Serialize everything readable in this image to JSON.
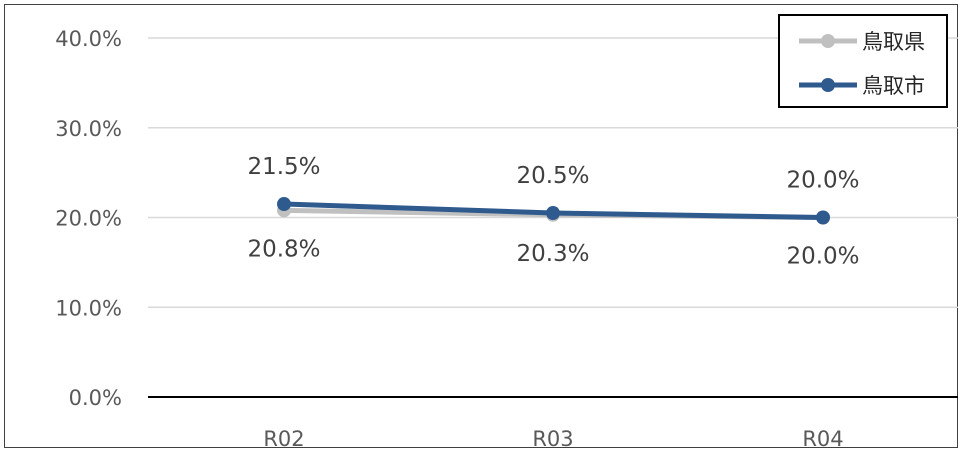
{
  "chart_data": {
    "type": "line",
    "categories": [
      "R02",
      "R03",
      "R04"
    ],
    "ylim": [
      0,
      0.4
    ],
    "yticks": [
      "0.0%",
      "10.0%",
      "20.0%",
      "30.0%",
      "40.0%"
    ],
    "grid": true,
    "legend_position": "top-right",
    "series": [
      {
        "name": "鳥取県",
        "values": [
          0.208,
          0.203,
          0.2
        ],
        "labels": [
          "20.8%",
          "20.3%",
          "20.0%"
        ],
        "color": "#c0c0c0",
        "label_position": "below"
      },
      {
        "name": "鳥取市",
        "values": [
          0.215,
          0.205,
          0.2
        ],
        "labels": [
          "21.5%",
          "20.5%",
          "20.0%"
        ],
        "color": "#2e5a8e",
        "label_position": "above"
      }
    ]
  }
}
